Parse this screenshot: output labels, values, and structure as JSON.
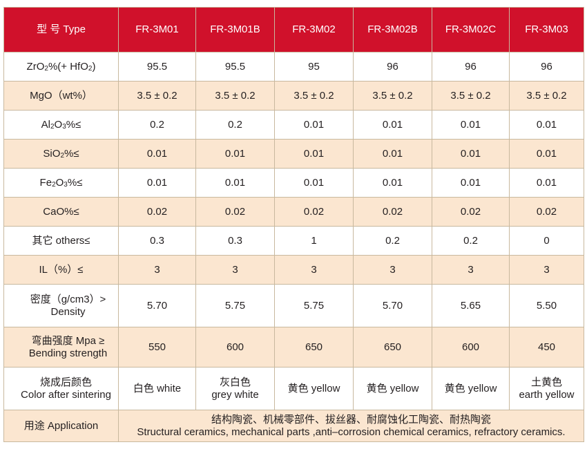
{
  "header": {
    "type_label": "型 号 Type",
    "models": [
      "FR-3M01",
      "FR-3M01B",
      "FR-3M02",
      "FR-3M02B",
      "FR-3M02C",
      "FR-3M03"
    ]
  },
  "rows": [
    {
      "label_pre": "ZrO",
      "label_sub1": "2",
      "label_mid": "%(+ HfO",
      "label_sub2": "2",
      "label_post": ")",
      "values": [
        "95.5",
        "95.5",
        "95",
        "96",
        "96",
        "96"
      ]
    },
    {
      "label": "MgO（wt%）",
      "values": [
        "3.5 ± 0.2",
        "3.5 ± 0.2",
        "3.5 ± 0.2",
        "3.5 ± 0.2",
        "3.5 ± 0.2",
        "3.5 ± 0.2"
      ]
    },
    {
      "label_pre": "Al",
      "label_sub1": "2",
      "label_mid": "O",
      "label_sub2": "3",
      "label_post": "%≤",
      "values": [
        "0.2",
        "0.2",
        "0.01",
        "0.01",
        "0.01",
        "0.01"
      ]
    },
    {
      "label_pre": "SiO",
      "label_sub1": "2",
      "label_post": "%≤",
      "values": [
        "0.01",
        "0.01",
        "0.01",
        "0.01",
        "0.01",
        "0.01"
      ]
    },
    {
      "label_pre": "Fe",
      "label_sub1": "2",
      "label_mid": "O",
      "label_sub2": "3",
      "label_post": "%≤",
      "values": [
        "0.01",
        "0.01",
        "0.01",
        "0.01",
        "0.01",
        "0.01"
      ]
    },
    {
      "label": "CaO%≤",
      "values": [
        "0.02",
        "0.02",
        "0.02",
        "0.02",
        "0.02",
        "0.02"
      ]
    },
    {
      "label": "其它 others≤",
      "values": [
        "0.3",
        "0.3",
        "1",
        "0.2",
        "0.2",
        "0"
      ]
    },
    {
      "label": "IL（%）≤",
      "values": [
        "3",
        "3",
        "3",
        "3",
        "3",
        "3"
      ]
    },
    {
      "label_line1": "密度（g/cm3）>",
      "label_line2": "Density",
      "values": [
        "5.70",
        "5.75",
        "5.75",
        "5.70",
        "5.65",
        "5.50"
      ]
    },
    {
      "label_line1": "弯曲强度 Mpa ≥",
      "label_line2": "Bending strength",
      "values": [
        "550",
        "600",
        "650",
        "650",
        "600",
        "450"
      ]
    },
    {
      "label_line1": "烧成后颜色",
      "label_line2": "Color after sintering",
      "values_line1": [
        "白色 white",
        "灰白色",
        "黄色 yellow",
        "黄色 yellow",
        "黄色 yellow",
        "土黄色"
      ],
      "values_line2": [
        "",
        "grey white",
        "",
        "",
        "",
        "earth yellow"
      ]
    }
  ],
  "application": {
    "label": "用途  Application",
    "line1": "结构陶瓷、机械零部件、拔丝器、耐腐蚀化工陶瓷、耐热陶瓷",
    "line2": "Structural ceramics, mechanical parts ,anti–corrosion chemical ceramics, refractory ceramics."
  },
  "colors": {
    "header_bg": "#d0112b",
    "stripe_bg": "#fbe6d0",
    "border": "#c8b89e"
  }
}
